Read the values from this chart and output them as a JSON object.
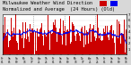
{
  "title_line1": "Milwaukee Weather Wind Direction",
  "title_line2": "Normalized and Average",
  "title_line3": "(24 Hours) (Old)",
  "bg_color": "#d8d8d8",
  "plot_bg": "#ffffff",
  "bar_color": "#cc0000",
  "line_color": "#0000ee",
  "legend_bar_color": "#cc0000",
  "legend_line_color": "#0000ee",
  "ylim": [
    0,
    7
  ],
  "yticks": [
    1,
    2,
    3,
    4,
    5,
    6,
    7
  ],
  "n_points": 288,
  "seed": 42,
  "bar_mean": 3.8,
  "bar_std": 1.6,
  "smooth_window": 20,
  "title_fontsize": 3.8,
  "tick_fontsize": 2.8,
  "n_vgrid": 3,
  "legend_fontsize": 3.5
}
